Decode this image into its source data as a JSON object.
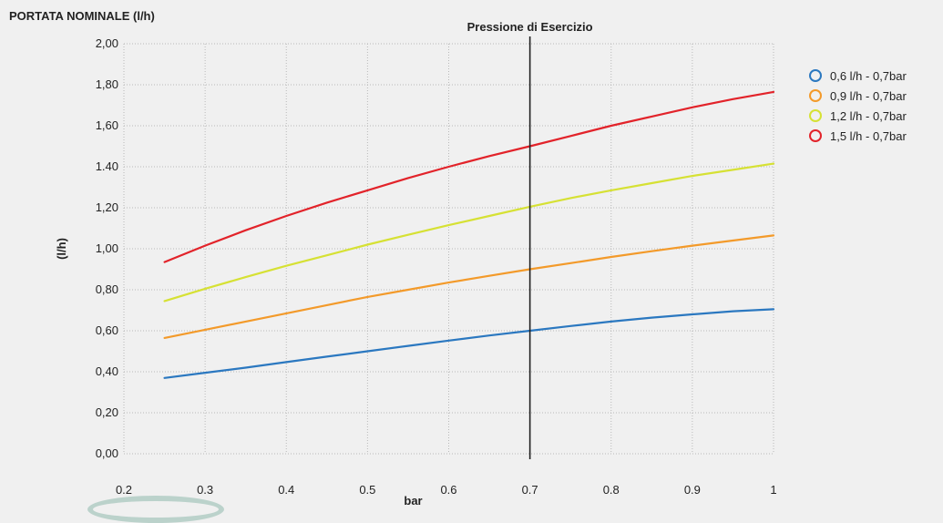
{
  "header": {
    "title": "PORTATA NOMINALE (l/h)"
  },
  "chart_data": {
    "type": "line",
    "title": "PORTATA NOMINALE (l/h)",
    "xlabel": "bar",
    "ylabel": "(l/h)",
    "xlim": [
      0.2,
      1.0
    ],
    "ylim": [
      0.0,
      2.0
    ],
    "x_ticks": [
      "0.2",
      "0.3",
      "0.4",
      "0.5",
      "0.6",
      "0.7",
      "0.8",
      "0.9",
      "1"
    ],
    "y_ticks": [
      "0,00",
      "0,20",
      "0,40",
      "0,60",
      "0,80",
      "1,00",
      "1,20",
      "1.40",
      "1,60",
      "1,80",
      "2,00"
    ],
    "grid": true,
    "legend_position": "top-right",
    "reference_line": {
      "x": 0.7,
      "label": "Pressione di Esercizio"
    },
    "x": [
      0.25,
      0.3,
      0.35,
      0.4,
      0.45,
      0.5,
      0.55,
      0.6,
      0.65,
      0.7,
      0.75,
      0.8,
      0.85,
      0.9,
      0.95,
      1.0
    ],
    "series": [
      {
        "name": "0,6 l/h - 0,7bar",
        "color": "#2b78c0",
        "values": [
          0.37,
          0.395,
          0.42,
          0.447,
          0.474,
          0.5,
          0.526,
          0.552,
          0.577,
          0.6,
          0.623,
          0.645,
          0.664,
          0.68,
          0.695,
          0.705
        ]
      },
      {
        "name": "0,9 l/h - 0,7bar",
        "color": "#f39a2a",
        "values": [
          0.565,
          0.605,
          0.645,
          0.685,
          0.725,
          0.765,
          0.8,
          0.835,
          0.868,
          0.9,
          0.93,
          0.96,
          0.988,
          1.015,
          1.04,
          1.065
        ]
      },
      {
        "name": "1,2 l/h - 0,7bar",
        "color": "#d6e134",
        "values": [
          0.745,
          0.805,
          0.862,
          0.917,
          0.968,
          1.02,
          1.068,
          1.115,
          1.16,
          1.205,
          1.247,
          1.285,
          1.32,
          1.355,
          1.385,
          1.415
        ]
      },
      {
        "name": "1,5 l/h - 0,7bar",
        "color": "#e2232a",
        "values": [
          0.935,
          1.015,
          1.09,
          1.16,
          1.225,
          1.285,
          1.345,
          1.4,
          1.452,
          1.5,
          1.55,
          1.6,
          1.645,
          1.69,
          1.73,
          1.765
        ]
      }
    ]
  }
}
